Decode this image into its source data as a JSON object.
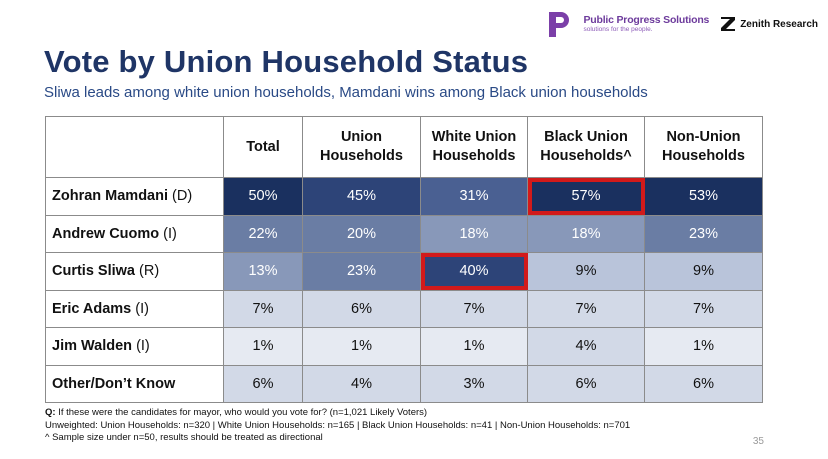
{
  "logos": {
    "pp_name": "Public Progress Solutions",
    "pp_tagline": "solutions for the people.",
    "zenith_name": "Zenith Research"
  },
  "title": "Vote by Union Household Status",
  "subtitle": "Sliwa leads among white union households, Mamdani wins among Black union households",
  "table": {
    "columns": [
      "Total",
      "Union Households",
      "White Union Households",
      "Black Union Households^",
      "Non-Union Households"
    ],
    "rows": [
      {
        "name": "Zohran Mamdani",
        "party": "(D)",
        "values": [
          "50%",
          "45%",
          "31%",
          "57%",
          "53%"
        ]
      },
      {
        "name": "Andrew Cuomo",
        "party": "(I)",
        "values": [
          "22%",
          "20%",
          "18%",
          "18%",
          "23%"
        ]
      },
      {
        "name": "Curtis Sliwa",
        "party": "(R)",
        "values": [
          "13%",
          "23%",
          "40%",
          "9%",
          "9%"
        ]
      },
      {
        "name": "Eric Adams",
        "party": "(I)",
        "values": [
          "7%",
          "6%",
          "7%",
          "7%",
          "7%"
        ]
      },
      {
        "name": "Jim Walden",
        "party": "(I)",
        "values": [
          "1%",
          "1%",
          "1%",
          "4%",
          "1%"
        ]
      },
      {
        "name": "Other/Don’t Know",
        "party": "",
        "values": [
          "6%",
          "4%",
          "3%",
          "6%",
          "6%"
        ]
      }
    ],
    "highlighted_cells": [
      {
        "row": 0,
        "col": 3
      },
      {
        "row": 2,
        "col": 2
      }
    ],
    "highlight_color": "#d21a1a"
  },
  "footnotes": {
    "q_label": "Q:",
    "question": "If these were the candidates for mayor, who would you vote for? (n=1,021 Likely Voters)",
    "unweighted": "Unweighted: Union Households: n=320 | White Union Households: n=165 | Black Union Households: n=41 | Non-Union Households: n=701",
    "caveat": "^ Sample size under n=50, results should be treated as directional"
  },
  "page_number": "35",
  "colors": {
    "title": "#1f3566",
    "subtitle": "#2a4a86",
    "heat_scale": [
      "#e6eaf2",
      "#d2d9e7",
      "#b9c4da",
      "#8898b9",
      "#6a7da4",
      "#4a6092",
      "#2d4478",
      "#1a305f"
    ]
  }
}
